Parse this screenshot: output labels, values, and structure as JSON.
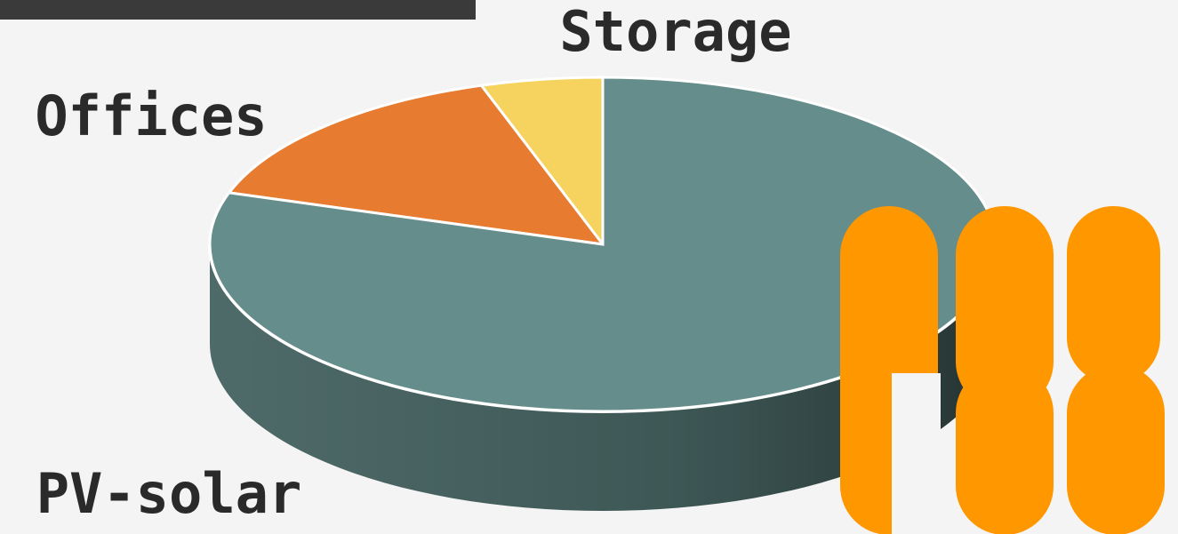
{
  "chart_data": {
    "type": "pie",
    "categories": [
      "Storage",
      "Offices",
      "PV-solar"
    ],
    "values": [
      5,
      15,
      80
    ],
    "colors": [
      "#f6d35f",
      "#e77b30",
      "#648d8b"
    ]
  }
}
